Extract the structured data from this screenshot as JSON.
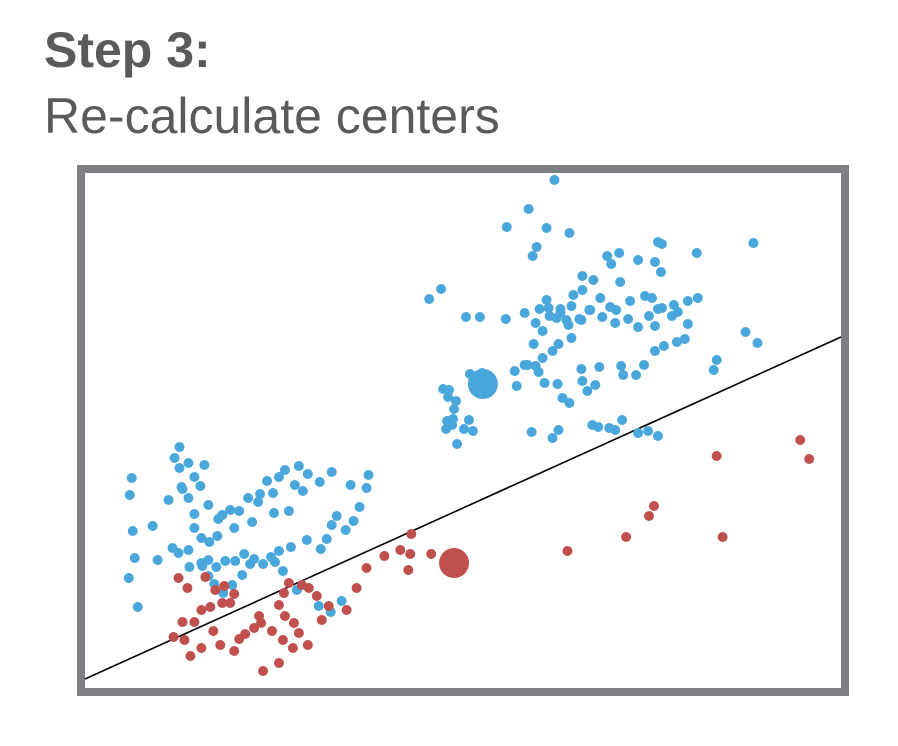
{
  "header": {
    "title": "Step 3:",
    "subtitle": "Re-calculate centers"
  },
  "colors": {
    "text": "#595a5c",
    "frame": "#7f8083",
    "cluster_a": "#4aa7dc",
    "cluster_b": "#c0504d",
    "boundary": "#000000"
  },
  "chart_data": {
    "type": "scatter",
    "xlim": [
      0,
      760
    ],
    "ylim": [
      0,
      515
    ],
    "grid": false,
    "legend": "none",
    "series": [
      {
        "color": "#4aa7dc",
        "center": [
          400,
          304
        ],
        "points": [
          [
            472,
            508
          ],
          [
            446,
            479
          ],
          [
            424,
            461
          ],
          [
            454,
            441
          ],
          [
            464,
            460
          ],
          [
            487,
            455
          ],
          [
            525,
            432
          ],
          [
            529,
            424
          ],
          [
            450,
            432
          ],
          [
            576,
            446
          ],
          [
            358,
            399
          ],
          [
            346,
            389
          ],
          [
            500,
            398
          ],
          [
            580,
            444
          ],
          [
            672,
            445
          ],
          [
            615,
            435
          ],
          [
            537,
            435
          ],
          [
            556,
            428
          ],
          [
            573,
            426
          ],
          [
            538,
            406
          ],
          [
            579,
            416
          ],
          [
            500,
            412
          ],
          [
            511,
            408
          ],
          [
            491,
            393
          ],
          [
            457,
            379
          ],
          [
            467,
            372
          ],
          [
            460,
            357
          ],
          [
            451,
            344
          ],
          [
            478,
            375
          ],
          [
            489,
            382
          ],
          [
            397,
            371
          ],
          [
            383,
            371
          ],
          [
            423,
            369
          ],
          [
            442,
            375
          ],
          [
            453,
            365
          ],
          [
            464,
            388
          ],
          [
            474,
            370
          ],
          [
            484,
            368
          ],
          [
            499,
            368
          ],
          [
            508,
            378
          ],
          [
            518,
            390
          ],
          [
            528,
            381
          ],
          [
            534,
            378
          ],
          [
            548,
            387
          ],
          [
            563,
            392
          ],
          [
            570,
            390
          ],
          [
            580,
            380
          ],
          [
            592,
            383
          ],
          [
            606,
            387
          ],
          [
            616,
            390
          ],
          [
            596,
            376
          ],
          [
            606,
            364
          ],
          [
            603,
            349
          ],
          [
            590,
            372
          ],
          [
            576,
            379
          ],
          [
            573,
            362
          ],
          [
            567,
            372
          ],
          [
            556,
            361
          ],
          [
            546,
            369
          ],
          [
            533,
            365
          ],
          [
            520,
            371
          ],
          [
            507,
            378
          ],
          [
            497,
            369
          ],
          [
            486,
            363
          ],
          [
            478,
            379
          ],
          [
            466,
            380
          ],
          [
            489,
            350
          ],
          [
            476,
            344
          ],
          [
            470,
            337
          ],
          [
            460,
            330
          ],
          [
            453,
            322
          ],
          [
            445,
            323
          ],
          [
            432,
            317
          ],
          [
            410,
            304
          ],
          [
            399,
            315
          ],
          [
            387,
            314
          ],
          [
            400,
            296
          ],
          [
            434,
            302
          ],
          [
            442,
            323
          ],
          [
            456,
            316
          ],
          [
            462,
            305
          ],
          [
            475,
            304
          ],
          [
            480,
            290
          ],
          [
            487,
            285
          ],
          [
            505,
            297
          ],
          [
            513,
            303
          ],
          [
            500,
            307
          ],
          [
            499,
            319
          ],
          [
            517,
            321
          ],
          [
            539,
            322
          ],
          [
            541,
            313
          ],
          [
            554,
            313
          ],
          [
            562,
            323
          ],
          [
            573,
            337
          ],
          [
            582,
            342
          ],
          [
            595,
            346
          ],
          [
            664,
            356
          ],
          [
            676,
            345
          ],
          [
            632,
            318
          ],
          [
            635,
            328
          ],
          [
            366,
            298
          ],
          [
            360,
            299
          ],
          [
            365,
            291
          ],
          [
            371,
            279
          ],
          [
            369,
            263
          ],
          [
            364,
            267
          ],
          [
            363,
            259
          ],
          [
            381,
            259
          ],
          [
            373,
            287
          ],
          [
            386,
            268
          ],
          [
            374,
            244
          ],
          [
            370,
            269
          ],
          [
            390,
            257
          ],
          [
            449,
            256
          ],
          [
            470,
            250
          ],
          [
            476,
            258
          ],
          [
            510,
            263
          ],
          [
            516,
            261
          ],
          [
            527,
            260
          ],
          [
            533,
            258
          ],
          [
            540,
            268
          ],
          [
            556,
            255
          ],
          [
            566,
            257
          ],
          [
            576,
            252
          ],
          [
            45,
            193
          ],
          [
            47,
            210
          ],
          [
            48,
            157
          ],
          [
            50,
            130
          ],
          [
            44,
            110
          ],
          [
            53,
            81
          ],
          [
            73,
            128
          ],
          [
            68,
            162
          ],
          [
            84,
            188
          ],
          [
            97,
            201
          ],
          [
            120,
            223
          ],
          [
            116,
            202
          ],
          [
            110,
            211
          ],
          [
            104,
            190
          ],
          [
            124,
            183
          ],
          [
            110,
            174
          ],
          [
            134,
            169
          ],
          [
            138,
            173
          ],
          [
            146,
            178
          ],
          [
            155,
            177
          ],
          [
            164,
            190
          ],
          [
            174,
            186
          ],
          [
            189,
            195
          ],
          [
            211,
            203
          ],
          [
            219,
            197
          ],
          [
            205,
            177
          ],
          [
            190,
            175
          ],
          [
            168,
            166
          ],
          [
            150,
            160
          ],
          [
            133,
            152
          ],
          [
            125,
            146
          ],
          [
            117,
            150
          ],
          [
            104,
            138
          ],
          [
            94,
            135
          ],
          [
            88,
            140
          ],
          [
            105,
            121
          ],
          [
            118,
            122
          ],
          [
            124,
            128
          ],
          [
            132,
            121
          ],
          [
            141,
            127
          ],
          [
            151,
            127
          ],
          [
            160,
            134
          ],
          [
            170,
            129
          ],
          [
            179,
            124
          ],
          [
            187,
            131
          ],
          [
            195,
            137
          ],
          [
            207,
            141
          ],
          [
            223,
            148
          ],
          [
            237,
            139
          ],
          [
            243,
            149
          ],
          [
            248,
            163
          ],
          [
            253,
            172
          ],
          [
            262,
            158
          ],
          [
            270,
            167
          ],
          [
            276,
            181
          ],
          [
            283,
            200
          ],
          [
            285,
            213
          ],
          [
            267,
            203
          ],
          [
            248,
            216
          ],
          [
            236,
            206
          ],
          [
            224,
            214
          ],
          [
            215,
            222
          ],
          [
            201,
            218
          ],
          [
            195,
            211
          ],
          [
            183,
            207
          ],
          [
            176,
            194
          ],
          [
            90,
            230
          ],
          [
            95,
            241
          ],
          [
            104,
            225
          ],
          [
            95,
            220
          ],
          [
            98,
            199
          ],
          [
            110,
            160
          ],
          [
            117,
            125
          ],
          [
            124,
            112
          ],
          [
            130,
            104
          ],
          [
            139,
            95
          ],
          [
            148,
            103
          ],
          [
            158,
            113
          ],
          [
            166,
            124
          ],
          [
            191,
            126
          ],
          [
            199,
            117
          ],
          [
            213,
            98
          ],
          [
            235,
            82
          ],
          [
            247,
            76
          ],
          [
            258,
            87
          ]
        ]
      },
      {
        "color": "#c0504d",
        "center": [
          371,
          125
        ],
        "points": [
          [
            328,
            154
          ],
          [
            317,
            138
          ],
          [
            325,
            118
          ],
          [
            327,
            134
          ],
          [
            348,
            134
          ],
          [
            301,
            132
          ],
          [
            283,
            120
          ],
          [
            273,
            100
          ],
          [
            263,
            78
          ],
          [
            238,
            68
          ],
          [
            245,
            82
          ],
          [
            233,
            92
          ],
          [
            225,
            100
          ],
          [
            218,
            103
          ],
          [
            205,
            105
          ],
          [
            200,
            95
          ],
          [
            195,
            83
          ],
          [
            201,
            72
          ],
          [
            210,
            65
          ],
          [
            215,
            55
          ],
          [
            224,
            43
          ],
          [
            209,
            40
          ],
          [
            199,
            48
          ],
          [
            188,
            57
          ],
          [
            177,
            65
          ],
          [
            175,
            72
          ],
          [
            170,
            60
          ],
          [
            161,
            54
          ],
          [
            155,
            49
          ],
          [
            150,
            37
          ],
          [
            136,
            43
          ],
          [
            129,
            57
          ],
          [
            117,
            40
          ],
          [
            106,
            32
          ],
          [
            100,
            48
          ],
          [
            89,
            51
          ],
          [
            98,
            66
          ],
          [
            110,
            66
          ],
          [
            117,
            78
          ],
          [
            126,
            81
          ],
          [
            138,
            85
          ],
          [
            146,
            85
          ],
          [
            150,
            94
          ],
          [
            140,
            102
          ],
          [
            131,
            98
          ],
          [
            121,
            111
          ],
          [
            103,
            100
          ],
          [
            94,
            110
          ],
          [
            179,
            17
          ],
          [
            195,
            25
          ],
          [
            485,
            137
          ],
          [
            544,
            151
          ],
          [
            567,
            172
          ],
          [
            641,
            151
          ],
          [
            719,
            248
          ],
          [
            728,
            229
          ],
          [
            635,
            232
          ],
          [
            572,
            182
          ]
        ]
      }
    ],
    "boundary_line": [
      [
        0,
        9
      ],
      [
        760,
        351
      ]
    ]
  }
}
